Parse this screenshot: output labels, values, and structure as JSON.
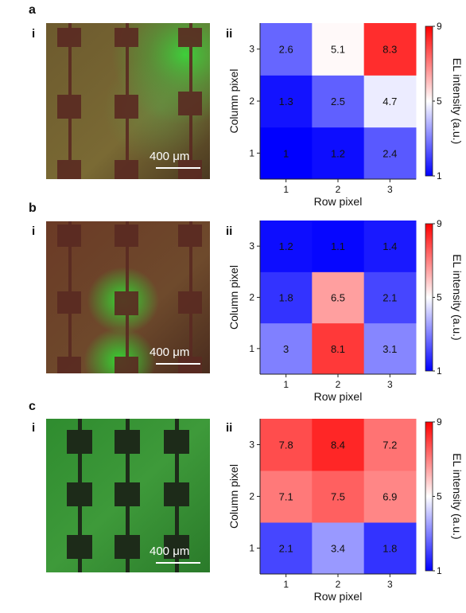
{
  "panels": [
    {
      "letter": "a",
      "micrograph": {
        "label": "i",
        "scale_bar": "400 μm",
        "glow": "green edge emission at top-right pixel"
      },
      "heatmap_label": "ii"
    },
    {
      "letter": "b",
      "micrograph": {
        "label": "i",
        "scale_bar": "400 μm",
        "glow": "green emission at middle column"
      },
      "heatmap_label": "ii"
    },
    {
      "letter": "c",
      "micrograph": {
        "label": "i",
        "scale_bar": "400 μm",
        "glow": "uniform green emission"
      },
      "heatmap_label": "ii"
    }
  ],
  "chart_data": [
    {
      "type": "heatmap",
      "xlabel": "Row pixel",
      "ylabel": "Column pixel",
      "x": [
        1,
        2,
        3
      ],
      "y": [
        1,
        2,
        3
      ],
      "values": [
        [
          1,
          1.2,
          2.4
        ],
        [
          1.3,
          2.5,
          4.7
        ],
        [
          2.6,
          5.1,
          8.3
        ]
      ],
      "value_labels": [
        [
          "1",
          "1.2",
          "2.4"
        ],
        [
          "1.3",
          "2.5",
          "4.7"
        ],
        [
          "2.6",
          "5.1",
          "8.3"
        ]
      ],
      "colorbar": {
        "label": "EL intensity (a.u.)",
        "min": 1,
        "max": 9,
        "ticks": [
          "1",
          "5",
          "9"
        ],
        "low_color": "#0000ff",
        "mid_color": "#ffffff",
        "high_color": "#ff0000"
      }
    },
    {
      "type": "heatmap",
      "xlabel": "Row pixel",
      "ylabel": "Column pixel",
      "x": [
        1,
        2,
        3
      ],
      "y": [
        1,
        2,
        3
      ],
      "values": [
        [
          3,
          8.1,
          3.1
        ],
        [
          1.8,
          6.5,
          2.1
        ],
        [
          1.2,
          1.1,
          1.4
        ]
      ],
      "value_labels": [
        [
          "3",
          "8.1",
          "3.1"
        ],
        [
          "1.8",
          "6.5",
          "2.1"
        ],
        [
          "1.2",
          "1.1",
          "1.4"
        ]
      ],
      "colorbar": {
        "label": "EL intensity (a.u.)",
        "min": 1,
        "max": 9,
        "ticks": [
          "1",
          "5",
          "9"
        ],
        "low_color": "#0000ff",
        "mid_color": "#ffffff",
        "high_color": "#ff0000"
      }
    },
    {
      "type": "heatmap",
      "xlabel": "Row pixel",
      "ylabel": "Column pixel",
      "x": [
        1,
        2,
        3
      ],
      "y": [
        1,
        2,
        3
      ],
      "values": [
        [
          2.1,
          3.4,
          1.8
        ],
        [
          7.1,
          7.5,
          6.9
        ],
        [
          7.8,
          8.4,
          7.2
        ]
      ],
      "value_labels": [
        [
          "2.1",
          "3.4",
          "1.8"
        ],
        [
          "7.1",
          "7.5",
          "6.9"
        ],
        [
          "7.8",
          "8.4",
          "7.2"
        ]
      ],
      "colorbar": {
        "label": "EL intensity (a.u.)",
        "min": 1,
        "max": 9,
        "ticks": [
          "1",
          "5",
          "9"
        ],
        "low_color": "#0000ff",
        "mid_color": "#ffffff",
        "high_color": "#ff0000"
      }
    }
  ]
}
